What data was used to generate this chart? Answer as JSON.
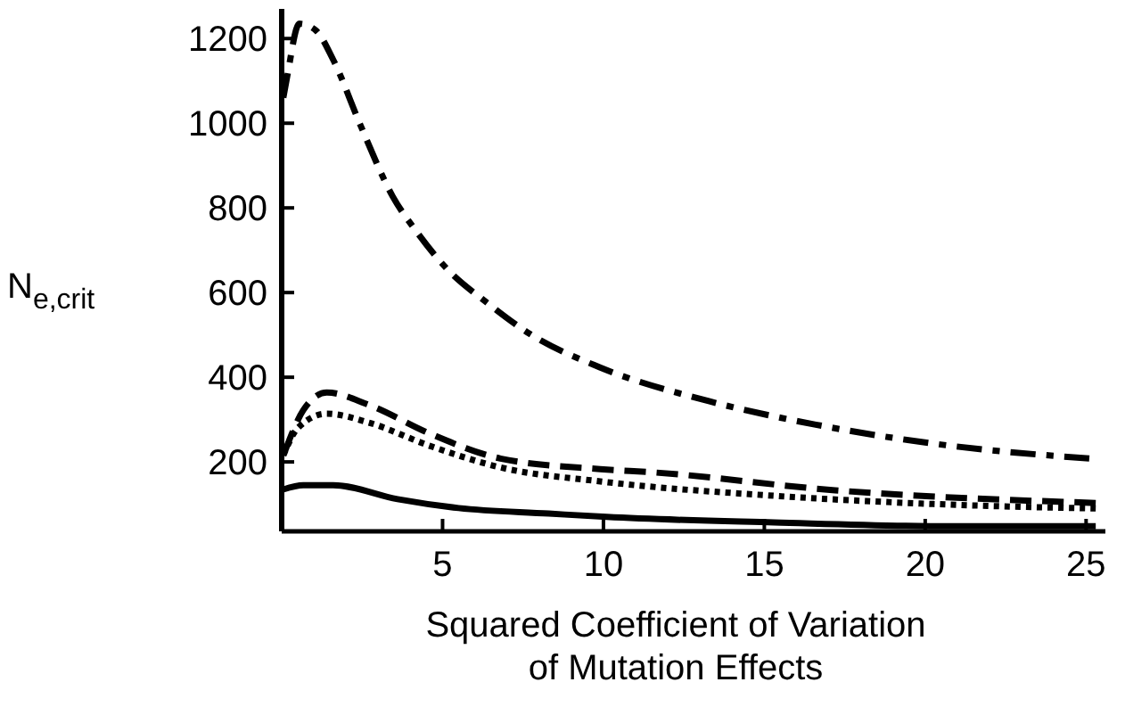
{
  "chart_data": {
    "type": "line",
    "xlabel": "Squared Coefficient of Variation\nof Mutation Effects",
    "ylabel": "N$_{e,crit}$",
    "xlim": [
      0,
      25.6
    ],
    "ylim": [
      36,
      1270
    ],
    "xticks": [
      5,
      10,
      15,
      20,
      25
    ],
    "yticks": [
      200,
      400,
      600,
      800,
      1000,
      1200
    ],
    "grid": false,
    "marker": "none",
    "series": [
      {
        "color": "#000000",
        "line_style": "solid",
        "x": [
          0.05,
          0.67,
          1.6,
          3.6,
          5.5,
          8.3,
          10.1,
          15.3,
          20.8,
          25.3
        ],
        "values": [
          135,
          145,
          145,
          112,
          91,
          78,
          70,
          57,
          48,
          48
        ]
      },
      {
        "color": "#000000",
        "line_style": "dotted",
        "x": [
          0.05,
          0.5,
          1.4,
          2.7,
          4.6,
          6.8,
          9.9,
          15.3,
          20.8,
          25.3
        ],
        "values": [
          215,
          280,
          314,
          293,
          238,
          187,
          154,
          120,
          99,
          90
        ]
      },
      {
        "color": "#000000",
        "line_style": "dashed",
        "x": [
          0.1,
          0.67,
          1.4,
          2.7,
          4.6,
          6.8,
          9.9,
          11.6,
          17.2,
          25.3
        ],
        "values": [
          225,
          322,
          364,
          335,
          267,
          208,
          183,
          175,
          133,
          103
        ]
      },
      {
        "color": "#000000",
        "line_style": "dashdot",
        "x": [
          0.05,
          0.17,
          0.55,
          1.05,
          1.6,
          2.45,
          3.45,
          4.2,
          5.1,
          6.4,
          7.7,
          9.9,
          13.3,
          16.6,
          20.8,
          25.1
        ],
        "values": [
          1060,
          1110,
          1235,
          1220,
          1150,
          995,
          827,
          743,
          659,
          575,
          503,
          423,
          343,
          288,
          238,
          208
        ]
      }
    ]
  }
}
